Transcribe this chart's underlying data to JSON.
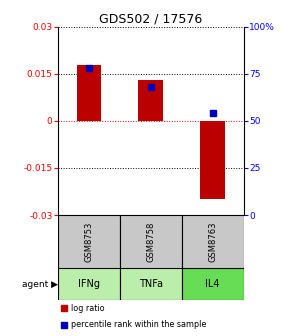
{
  "title": "GDS502 / 17576",
  "samples": [
    "GSM8753",
    "GSM8758",
    "GSM8763"
  ],
  "agents": [
    "IFNg",
    "TNFa",
    "IL4"
  ],
  "log_ratios": [
    0.018,
    0.013,
    -0.025
  ],
  "percentile_ranks": [
    0.78,
    0.68,
    0.54
  ],
  "ylim_left": [
    -0.03,
    0.03
  ],
  "ylim_right": [
    0,
    1.0
  ],
  "yticks_left": [
    -0.03,
    -0.015,
    0,
    0.015,
    0.03
  ],
  "yticks_right": [
    0,
    0.25,
    0.5,
    0.75,
    1.0
  ],
  "ytick_labels_left": [
    "-0.03",
    "-0.015",
    "0",
    "0.015",
    "0.03"
  ],
  "ytick_labels_right": [
    "0",
    "25",
    "50",
    "75",
    "100%"
  ],
  "bar_color": "#bb0000",
  "marker_color": "#0000bb",
  "sample_bg_color": "#c8c8c8",
  "agent_color_light": "#bbeeaa",
  "agent_color_dark": "#66dd55",
  "legend_bar_label": "log ratio",
  "legend_marker_label": "percentile rank within the sample",
  "bar_width": 0.4,
  "title_fontsize": 9
}
